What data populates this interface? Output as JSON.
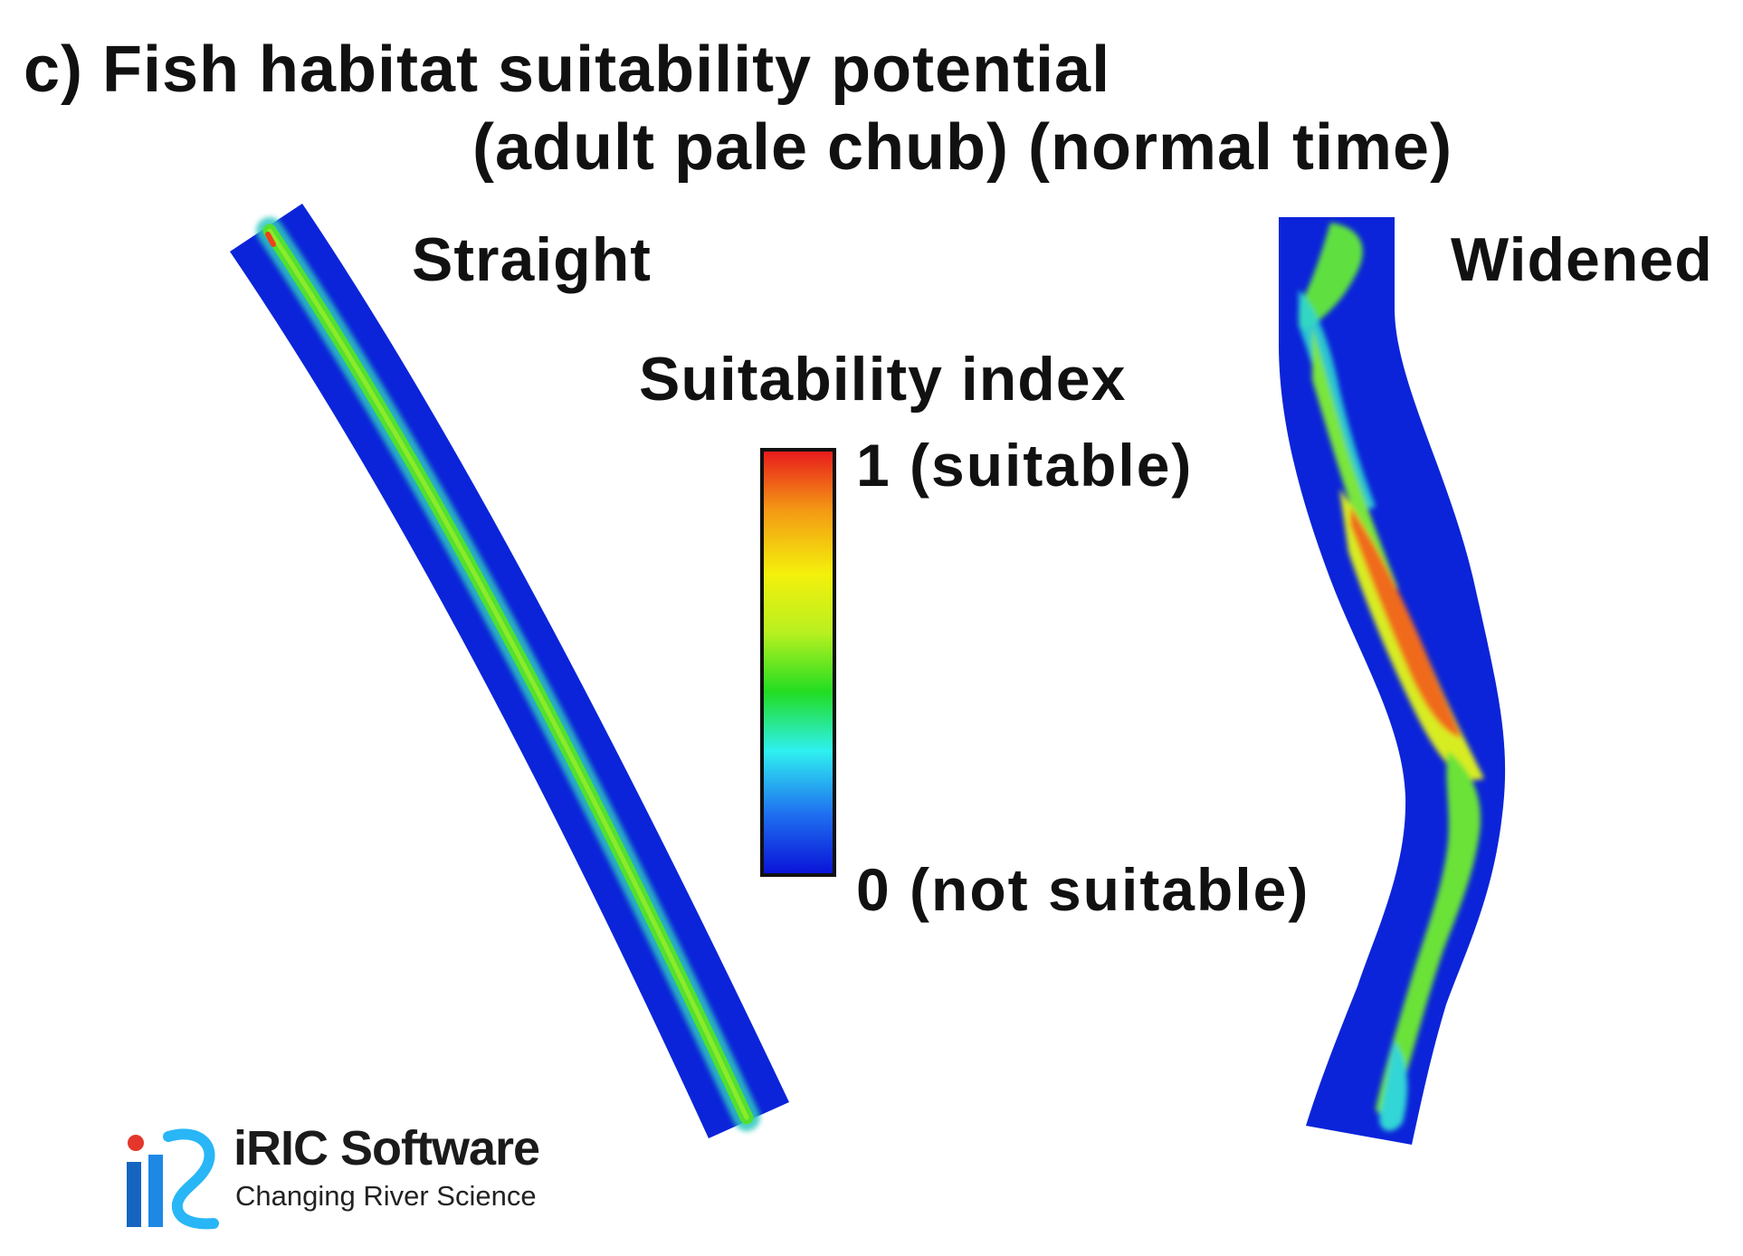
{
  "title": {
    "line1": "c) Fish habitat suitability potential",
    "line2": "(adult pale chub) (normal time)"
  },
  "panels": {
    "straight_label": "Straight",
    "widened_label": "Widened"
  },
  "colorbar": {
    "title": "Suitability index",
    "max_label": "1 (suitable)",
    "min_label": "0 (not suitable)",
    "min": 0,
    "max": 1,
    "colors": [
      "#0a14d8",
      "#1f6ff0",
      "#2ff0f0",
      "#22dd22",
      "#b8f020",
      "#f4f00c",
      "#f49a14",
      "#e81c1c"
    ]
  },
  "colors": {
    "channel_low": "#0b24d9",
    "corridor_mid": "#52e030",
    "hot_spot": "#f06a1a"
  },
  "logo": {
    "name": "iRIC Software",
    "tagline": "Changing River Science"
  }
}
